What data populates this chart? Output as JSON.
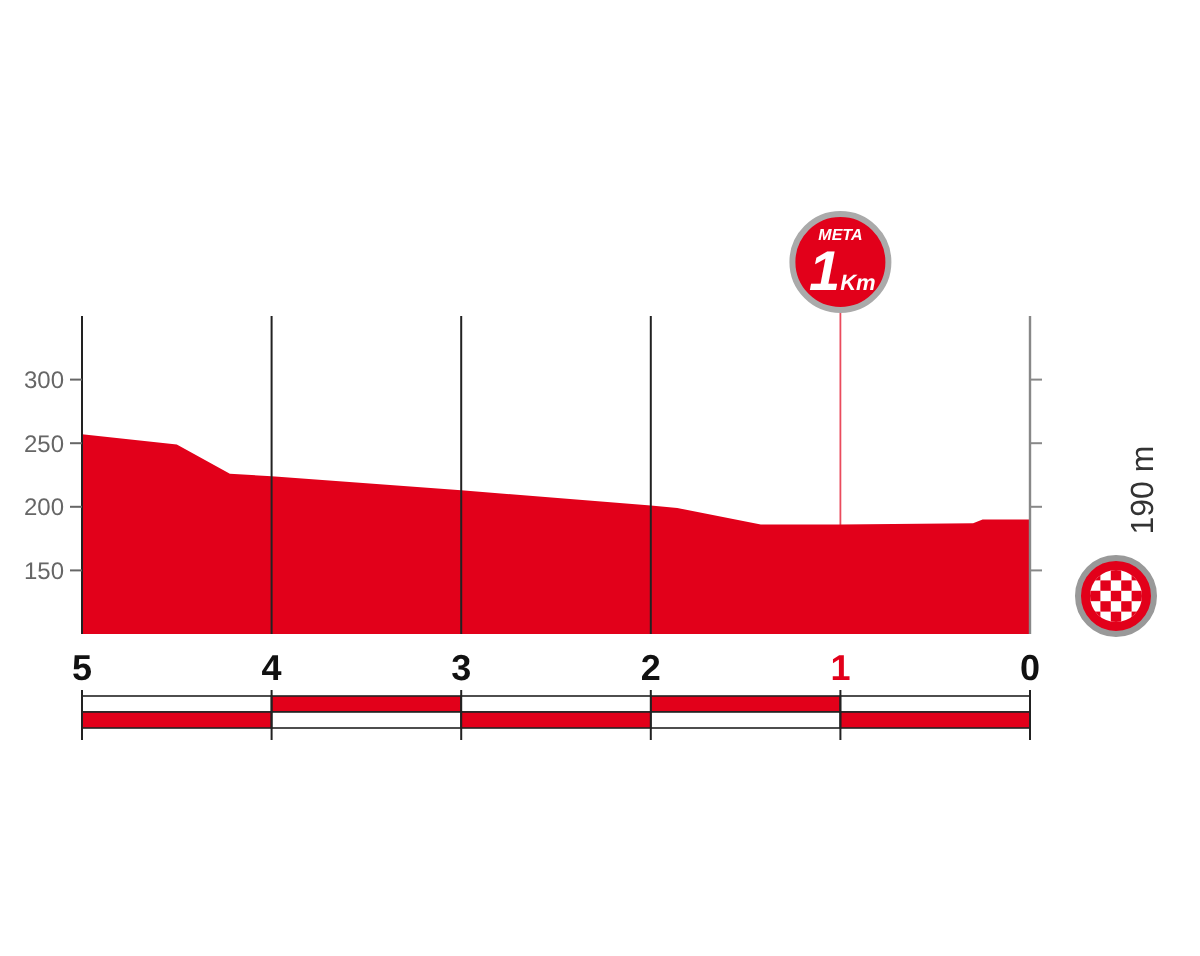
{
  "chart_data": {
    "type": "area",
    "color": "#e2001a",
    "x": [
      5,
      4.5,
      4.22,
      4,
      3,
      2,
      1.86,
      1.42,
      1.2,
      1,
      0.3,
      0.25,
      0
    ],
    "values": [
      257,
      249,
      226,
      224,
      213,
      201,
      199,
      186,
      186,
      186,
      187,
      190,
      190
    ],
    "xlim": [
      5,
      0
    ],
    "xticks": [
      5,
      4,
      3,
      2,
      1,
      0
    ],
    "ylim": [
      100,
      350
    ],
    "yticks": [
      150,
      200,
      250,
      300
    ],
    "grid": "x",
    "ref_lines": [
      {
        "axis": "x",
        "value": 1,
        "label": "META 1Km",
        "color": "#e2001a"
      }
    ],
    "annotations": [
      "190 m"
    ]
  }
}
